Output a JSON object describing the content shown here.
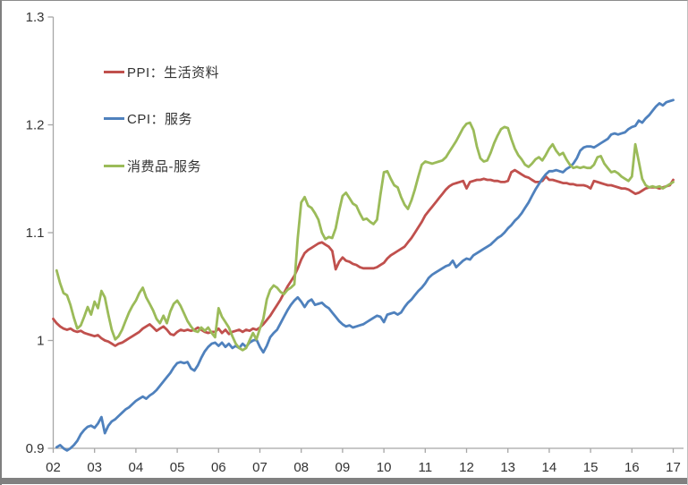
{
  "frame": {
    "background": "#ffffff",
    "border_color": "#808080",
    "bottom_band_color": "#808080"
  },
  "axes": {
    "y": {
      "min": 0.9,
      "max": 1.3,
      "ticks": [
        {
          "v": 1.3,
          "label": "1.3"
        },
        {
          "v": 1.2,
          "label": "1.2"
        },
        {
          "v": 1.1,
          "label": "1.1"
        },
        {
          "v": 1.0,
          "label": "1"
        },
        {
          "v": 0.9,
          "label": "0.9"
        }
      ]
    },
    "x": {
      "min": 2002,
      "max": 2017,
      "ticks": [
        {
          "v": 2002,
          "label": "02"
        },
        {
          "v": 2003,
          "label": "03"
        },
        {
          "v": 2004,
          "label": "04"
        },
        {
          "v": 2005,
          "label": "05"
        },
        {
          "v": 2006,
          "label": "06"
        },
        {
          "v": 2007,
          "label": "07"
        },
        {
          "v": 2008,
          "label": "08"
        },
        {
          "v": 2009,
          "label": "09"
        },
        {
          "v": 2010,
          "label": "10"
        },
        {
          "v": 2011,
          "label": "11"
        },
        {
          "v": 2012,
          "label": "12"
        },
        {
          "v": 2013,
          "label": "13"
        },
        {
          "v": 2014,
          "label": "14"
        },
        {
          "v": 2015,
          "label": "15"
        },
        {
          "v": 2016,
          "label": "16"
        },
        {
          "v": 2017,
          "label": "17"
        }
      ]
    },
    "axis_color": "#a6a6a6"
  },
  "chart_data": {
    "type": "line",
    "title": "",
    "xlabel": "",
    "ylabel": "",
    "ylim": [
      0.9,
      1.3
    ],
    "xlim": [
      2002,
      2017.05
    ],
    "grid": false,
    "legend_position": "inside-top-left",
    "frequency": "monthly",
    "series": [
      {
        "name": "PPI：生活资料",
        "color": "#C0504D",
        "start_year": 2002.0,
        "values": [
          1.02,
          1.016,
          1.013,
          1.011,
          1.01,
          1.011,
          1.009,
          1.008,
          1.009,
          1.007,
          1.006,
          1.005,
          1.004,
          1.005,
          1.002,
          1.0,
          0.999,
          0.997,
          0.995,
          0.997,
          0.998,
          1.0,
          1.002,
          1.004,
          1.006,
          1.008,
          1.011,
          1.013,
          1.015,
          1.012,
          1.009,
          1.011,
          1.013,
          1.01,
          1.006,
          1.005,
          1.008,
          1.01,
          1.009,
          1.01,
          1.009,
          1.01,
          1.012,
          1.01,
          1.008,
          1.007,
          1.008,
          1.008,
          1.011,
          1.007,
          1.01,
          1.006,
          1.008,
          1.009,
          1.01,
          1.008,
          1.01,
          1.009,
          1.011,
          1.01,
          1.012,
          1.015,
          1.019,
          1.023,
          1.028,
          1.033,
          1.038,
          1.044,
          1.05,
          1.055,
          1.06,
          1.067,
          1.075,
          1.081,
          1.084,
          1.086,
          1.088,
          1.09,
          1.091,
          1.089,
          1.087,
          1.083,
          1.066,
          1.073,
          1.077,
          1.074,
          1.073,
          1.071,
          1.07,
          1.068,
          1.067,
          1.067,
          1.067,
          1.067,
          1.068,
          1.07,
          1.072,
          1.076,
          1.079,
          1.081,
          1.083,
          1.085,
          1.087,
          1.091,
          1.095,
          1.1,
          1.105,
          1.11,
          1.116,
          1.12,
          1.124,
          1.128,
          1.132,
          1.136,
          1.14,
          1.143,
          1.145,
          1.146,
          1.147,
          1.148,
          1.141,
          1.147,
          1.148,
          1.149,
          1.149,
          1.15,
          1.149,
          1.149,
          1.148,
          1.148,
          1.147,
          1.147,
          1.148,
          1.156,
          1.158,
          1.156,
          1.154,
          1.152,
          1.151,
          1.149,
          1.147,
          1.147,
          1.148,
          1.152,
          1.149,
          1.149,
          1.148,
          1.147,
          1.146,
          1.146,
          1.145,
          1.145,
          1.144,
          1.144,
          1.144,
          1.143,
          1.141,
          1.148,
          1.147,
          1.146,
          1.145,
          1.144,
          1.144,
          1.143,
          1.142,
          1.141,
          1.141,
          1.14,
          1.138,
          1.136,
          1.137,
          1.139,
          1.141,
          1.142,
          1.142,
          1.142,
          1.141,
          1.142,
          1.143,
          1.144,
          1.149
        ]
      },
      {
        "name": "CPI：服务",
        "color": "#4F81BD",
        "start_year": 2002.0833,
        "values": [
          0.901,
          0.903,
          0.9,
          0.898,
          0.9,
          0.903,
          0.907,
          0.913,
          0.917,
          0.92,
          0.921,
          0.919,
          0.923,
          0.929,
          0.914,
          0.921,
          0.925,
          0.927,
          0.93,
          0.933,
          0.936,
          0.938,
          0.941,
          0.944,
          0.946,
          0.948,
          0.946,
          0.949,
          0.951,
          0.954,
          0.958,
          0.962,
          0.966,
          0.97,
          0.975,
          0.979,
          0.98,
          0.979,
          0.98,
          0.974,
          0.972,
          0.977,
          0.984,
          0.99,
          0.994,
          0.997,
          0.998,
          0.995,
          0.998,
          0.994,
          0.997,
          0.993,
          0.995,
          0.993,
          0.997,
          0.994,
          0.998,
          1.0,
          1.001,
          0.994,
          0.989,
          0.995,
          1.003,
          1.007,
          1.01,
          1.016,
          1.022,
          1.028,
          1.033,
          1.037,
          1.04,
          1.036,
          1.031,
          1.036,
          1.038,
          1.033,
          1.034,
          1.035,
          1.032,
          1.03,
          1.026,
          1.022,
          1.018,
          1.015,
          1.013,
          1.014,
          1.012,
          1.013,
          1.014,
          1.015,
          1.017,
          1.019,
          1.021,
          1.023,
          1.022,
          1.017,
          1.024,
          1.025,
          1.026,
          1.024,
          1.026,
          1.031,
          1.035,
          1.038,
          1.042,
          1.046,
          1.049,
          1.053,
          1.058,
          1.061,
          1.063,
          1.065,
          1.067,
          1.069,
          1.07,
          1.074,
          1.068,
          1.071,
          1.074,
          1.076,
          1.075,
          1.079,
          1.081,
          1.083,
          1.085,
          1.087,
          1.089,
          1.092,
          1.095,
          1.097,
          1.1,
          1.104,
          1.107,
          1.111,
          1.114,
          1.118,
          1.123,
          1.128,
          1.134,
          1.14,
          1.145,
          1.15,
          1.154,
          1.157,
          1.157,
          1.158,
          1.157,
          1.156,
          1.159,
          1.161,
          1.164,
          1.169,
          1.176,
          1.179,
          1.18,
          1.18,
          1.179,
          1.181,
          1.183,
          1.185,
          1.187,
          1.191,
          1.192,
          1.191,
          1.192,
          1.193,
          1.196,
          1.198,
          1.199,
          1.204,
          1.202,
          1.206,
          1.209,
          1.213,
          1.217,
          1.22,
          1.218,
          1.221,
          1.222,
          1.223
        ]
      },
      {
        "name": "消费品-服务",
        "color": "#9BBB59",
        "start_year": 2002.0833,
        "values": [
          1.065,
          1.053,
          1.044,
          1.042,
          1.033,
          1.021,
          1.011,
          1.014,
          1.022,
          1.031,
          1.024,
          1.036,
          1.03,
          1.046,
          1.04,
          1.024,
          1.01,
          1.001,
          1.004,
          1.01,
          1.018,
          1.026,
          1.032,
          1.037,
          1.044,
          1.049,
          1.04,
          1.034,
          1.028,
          1.02,
          1.016,
          1.023,
          1.016,
          1.027,
          1.034,
          1.037,
          1.032,
          1.025,
          1.018,
          1.013,
          1.009,
          1.008,
          1.012,
          1.009,
          1.012,
          1.007,
          1.003,
          1.03,
          1.022,
          1.017,
          1.012,
          1.004,
          0.997,
          0.993,
          0.991,
          0.993,
          1.0,
          1.007,
          1.001,
          1.011,
          1.02,
          1.038,
          1.047,
          1.051,
          1.049,
          1.045,
          1.043,
          1.047,
          1.049,
          1.052,
          1.095,
          1.128,
          1.133,
          1.125,
          1.123,
          1.118,
          1.112,
          1.1,
          1.094,
          1.096,
          1.095,
          1.104,
          1.12,
          1.134,
          1.137,
          1.132,
          1.127,
          1.125,
          1.118,
          1.112,
          1.113,
          1.11,
          1.108,
          1.112,
          1.135,
          1.156,
          1.157,
          1.15,
          1.144,
          1.142,
          1.133,
          1.126,
          1.122,
          1.13,
          1.14,
          1.152,
          1.163,
          1.166,
          1.165,
          1.164,
          1.165,
          1.166,
          1.167,
          1.17,
          1.175,
          1.18,
          1.185,
          1.191,
          1.197,
          1.201,
          1.202,
          1.195,
          1.18,
          1.169,
          1.166,
          1.167,
          1.174,
          1.183,
          1.19,
          1.196,
          1.198,
          1.197,
          1.187,
          1.178,
          1.172,
          1.168,
          1.163,
          1.161,
          1.164,
          1.168,
          1.17,
          1.167,
          1.172,
          1.178,
          1.182,
          1.176,
          1.172,
          1.174,
          1.168,
          1.163,
          1.16,
          1.161,
          1.16,
          1.161,
          1.16,
          1.16,
          1.163,
          1.17,
          1.171,
          1.164,
          1.16,
          1.156,
          1.157,
          1.155,
          1.152,
          1.15,
          1.148,
          1.152,
          1.182,
          1.166,
          1.15,
          1.144,
          1.142,
          1.143,
          1.142,
          1.143,
          1.141,
          1.143,
          1.145,
          1.147
        ]
      }
    ]
  },
  "legend": {
    "items": [
      {
        "label": "PPI：生活资料"
      },
      {
        "label": "CPI：服务"
      },
      {
        "label": "消费品-服务"
      }
    ]
  }
}
